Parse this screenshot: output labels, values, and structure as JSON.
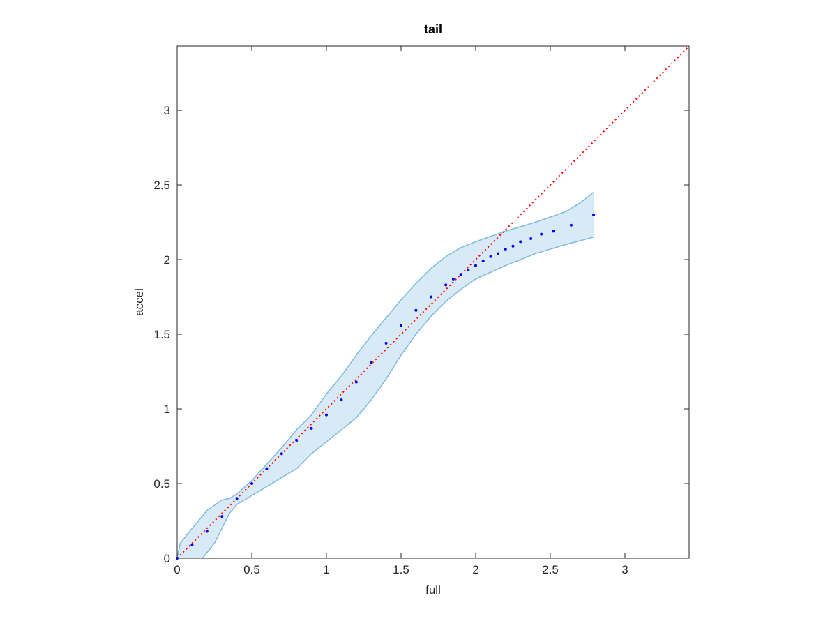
{
  "chart_data": {
    "type": "scatter",
    "title": "tail",
    "x_label": "full",
    "y_label": "accel",
    "xlim": [
      0,
      3.43
    ],
    "ylim": [
      0,
      3.43
    ],
    "xticks": [
      0,
      0.5,
      1,
      1.5,
      2,
      2.5,
      3
    ],
    "yticks": [
      0,
      0.5,
      1,
      1.5,
      2,
      2.5,
      3
    ],
    "grid": false,
    "series": [
      {
        "color": "#0000ff",
        "x": [
          0,
          0.1,
          0.2,
          0.3,
          0.4,
          0.5,
          0.6,
          0.7,
          0.8,
          0.9,
          1.0,
          1.1,
          1.2,
          1.3,
          1.4,
          1.5,
          1.6,
          1.7,
          1.8,
          1.85,
          1.9,
          1.95,
          2.0,
          2.05,
          2.1,
          2.15,
          2.2,
          2.25,
          2.3,
          2.37,
          2.44,
          2.52,
          2.64,
          2.79
        ],
        "values": [
          0,
          0.09,
          0.18,
          0.28,
          0.4,
          0.5,
          0.6,
          0.7,
          0.79,
          0.87,
          0.96,
          1.06,
          1.18,
          1.31,
          1.44,
          1.56,
          1.66,
          1.75,
          1.83,
          1.87,
          1.9,
          1.93,
          1.96,
          1.99,
          2.02,
          2.04,
          2.07,
          2.09,
          2.12,
          2.14,
          2.17,
          2.19,
          2.23,
          2.3
        ]
      }
    ],
    "band": {
      "color": "#7fb8e0",
      "upper": {
        "x": [
          0,
          0.02,
          0.1,
          0.2,
          0.3,
          0.35,
          0.4,
          0.5,
          0.6,
          0.7,
          0.8,
          0.9,
          1.0,
          1.1,
          1.2,
          1.3,
          1.4,
          1.5,
          1.6,
          1.7,
          1.8,
          1.9,
          2.0,
          2.2,
          2.4,
          2.6,
          2.7,
          2.79
        ],
        "values": [
          0,
          0.1,
          0.2,
          0.32,
          0.39,
          0.4,
          0.43,
          0.52,
          0.63,
          0.74,
          0.86,
          0.96,
          1.1,
          1.22,
          1.36,
          1.49,
          1.61,
          1.73,
          1.84,
          1.94,
          2.02,
          2.08,
          2.12,
          2.19,
          2.25,
          2.32,
          2.38,
          2.45
        ]
      },
      "lower": {
        "x": [
          0.17,
          0.25,
          0.3,
          0.35,
          0.4,
          0.5,
          0.6,
          0.7,
          0.8,
          0.9,
          1.0,
          1.1,
          1.2,
          1.3,
          1.4,
          1.5,
          1.6,
          1.7,
          1.8,
          1.9,
          2.0,
          2.2,
          2.4,
          2.6,
          2.79
        ],
        "values": [
          0,
          0.1,
          0.2,
          0.3,
          0.36,
          0.42,
          0.48,
          0.54,
          0.6,
          0.7,
          0.78,
          0.86,
          0.94,
          1.06,
          1.2,
          1.36,
          1.5,
          1.62,
          1.72,
          1.8,
          1.87,
          1.96,
          2.04,
          2.1,
          2.15
        ]
      }
    },
    "reference": {
      "color": "#ff0000",
      "x": [
        0,
        3.43
      ],
      "values": [
        0,
        3.43
      ]
    }
  }
}
